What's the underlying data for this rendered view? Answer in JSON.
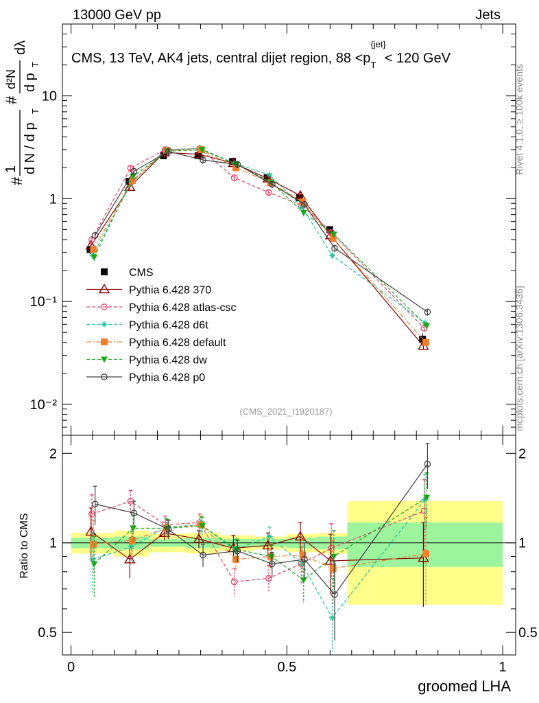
{
  "header": {
    "left": "13000 GeV pp",
    "right": "Jets"
  },
  "side_text": {
    "right_top": "Rivet 4.1.0, ≥ 100k events",
    "right_bottom": "mcplots.cern.ch [arXiv:1306.3436]"
  },
  "chart_data": {
    "type": "line",
    "title": "CMS, 13 TeV, AK4 jets, central dijet region, 88 < p_T^{jet} < 120 GeV",
    "title_parts": {
      "main": "CMS, 13 TeV, AK4 jets, central dijet region, 88 <p",
      "sub": "T",
      "sup": "{jet}",
      "tail": "< 120 GeV"
    },
    "ylabel": "1/dN/dpT · d²N/dpT dλ",
    "ylabel_parts": {
      "hash": "#",
      "one": "1",
      "den": "d N / d p",
      "sub": "T",
      "hash2": "#",
      "num_top": "d²N",
      "num_bot": "d p",
      "num_sub": "T",
      "lambda": "dλ"
    },
    "xlabel": "groomed LHA",
    "watermark": "(CMS_2021_I1920187)",
    "xlim": [
      0,
      1
    ],
    "ylim": [
      0.005,
      50
    ],
    "yscale": "log",
    "ytick_labels": [
      "10⁻²",
      "10⁻¹",
      "1",
      "10"
    ],
    "ytick_values": [
      0.01,
      0.1,
      1,
      10
    ],
    "xtick_labels": [
      "0",
      "0.5",
      "1"
    ],
    "xtick_values": [
      0,
      0.5,
      1
    ],
    "x": [
      0.05,
      0.14,
      0.22,
      0.3,
      0.38,
      0.46,
      0.535,
      0.605,
      0.82
    ],
    "series": [
      {
        "name": "CMS",
        "color": "#000000",
        "marker": "square-filled",
        "line": "none",
        "values": [
          0.32,
          1.48,
          2.62,
          2.62,
          2.3,
          1.6,
          1.02,
          0.5,
          0.043
        ],
        "errors": [
          0.03,
          0.08,
          0.1,
          0.1,
          0.08,
          0.07,
          0.05,
          0.03,
          0.006
        ],
        "band_rel": [
          0.08,
          0.1,
          0.07,
          0.08,
          0.06,
          0.05,
          0.07,
          0.08,
          0.38
        ],
        "stat_rel": [
          0.04,
          0.05,
          0.03,
          0.04,
          0.03,
          0.03,
          0.04,
          0.05,
          0.17
        ]
      },
      {
        "name": "Pythia 6.428 370",
        "color": "#8b0000",
        "marker": "triangle-open",
        "line": "solid",
        "values": [
          0.35,
          1.3,
          2.82,
          2.7,
          2.22,
          1.57,
          1.07,
          0.44,
          0.037
        ],
        "ratio": [
          1.09,
          0.88,
          1.08,
          1.03,
          0.96,
          0.98,
          1.05,
          0.87,
          0.89
        ],
        "rerr": [
          0.22,
          0.12,
          0.06,
          0.07,
          0.1,
          0.1,
          0.12,
          0.2,
          0.28
        ]
      },
      {
        "name": "Pythia 6.428 atlas-csc",
        "color": "#e0446a",
        "marker": "circle-open",
        "line": "dashed",
        "values": [
          0.4,
          1.98,
          3.0,
          3.07,
          1.6,
          1.15,
          0.87,
          0.47,
          0.055
        ],
        "ratio": [
          1.25,
          1.38,
          1.15,
          1.17,
          0.74,
          0.76,
          0.85,
          0.96,
          1.28
        ],
        "rerr": [
          0.2,
          0.12,
          0.08,
          0.08,
          0.08,
          0.08,
          0.12,
          0.2,
          0.35
        ]
      },
      {
        "name": "Pythia 6.428 d6t",
        "color": "#1ec39a",
        "marker": "star",
        "line": "dashed",
        "values": [
          0.28,
          1.43,
          3.0,
          3.07,
          2.2,
          1.7,
          0.83,
          0.28,
          0.062
        ],
        "ratio": [
          0.88,
          0.97,
          1.13,
          1.15,
          0.95,
          1.05,
          0.85,
          0.56,
          1.4
        ],
        "rerr": [
          0.2,
          0.12,
          0.08,
          0.08,
          0.08,
          0.08,
          0.12,
          0.2,
          0.3
        ]
      },
      {
        "name": "Pythia 6.428 default",
        "color": "#f07f30",
        "marker": "square-filled",
        "line": "dashdot",
        "values": [
          0.32,
          1.5,
          2.95,
          3.0,
          2.0,
          1.43,
          0.93,
          0.41,
          0.04
        ],
        "ratio": [
          0.99,
          1.02,
          1.12,
          1.15,
          0.88,
          0.9,
          0.91,
          0.82,
          0.92
        ],
        "rerr": [
          0.2,
          0.12,
          0.08,
          0.08,
          0.08,
          0.08,
          0.12,
          0.2,
          0.3
        ]
      },
      {
        "name": "Pythia 6.428 dw",
        "color": "#18a818",
        "marker": "triangle-down-filled",
        "line": "dashed",
        "values": [
          0.27,
          1.65,
          2.9,
          2.98,
          2.15,
          1.44,
          0.73,
          0.45,
          0.058
        ],
        "ratio": [
          0.85,
          1.12,
          1.12,
          1.14,
          0.95,
          0.9,
          0.75,
          0.9,
          1.42
        ],
        "rerr": [
          0.2,
          0.12,
          0.08,
          0.08,
          0.08,
          0.08,
          0.12,
          0.2,
          0.3
        ]
      },
      {
        "name": "Pythia 6.428 p0",
        "color": "#404040",
        "marker": "circle-open",
        "line": "solid",
        "values": [
          0.44,
          1.85,
          2.88,
          2.38,
          2.15,
          1.38,
          0.88,
          0.33,
          0.079
        ],
        "ratio": [
          1.35,
          1.26,
          1.11,
          0.91,
          0.94,
          0.85,
          0.88,
          0.67,
          1.84
        ],
        "rerr": [
          0.2,
          0.12,
          0.08,
          0.08,
          0.08,
          0.08,
          0.12,
          0.2,
          0.32
        ]
      }
    ],
    "ratio_panel": {
      "ylabel": "Ratio to CMS",
      "ylim": [
        0.42,
        2.3
      ],
      "ytick_labels": [
        "0.5",
        "1",
        "2"
      ],
      "ytick_values": [
        0.5,
        1,
        2
      ]
    },
    "legend_position": "lower-left"
  }
}
